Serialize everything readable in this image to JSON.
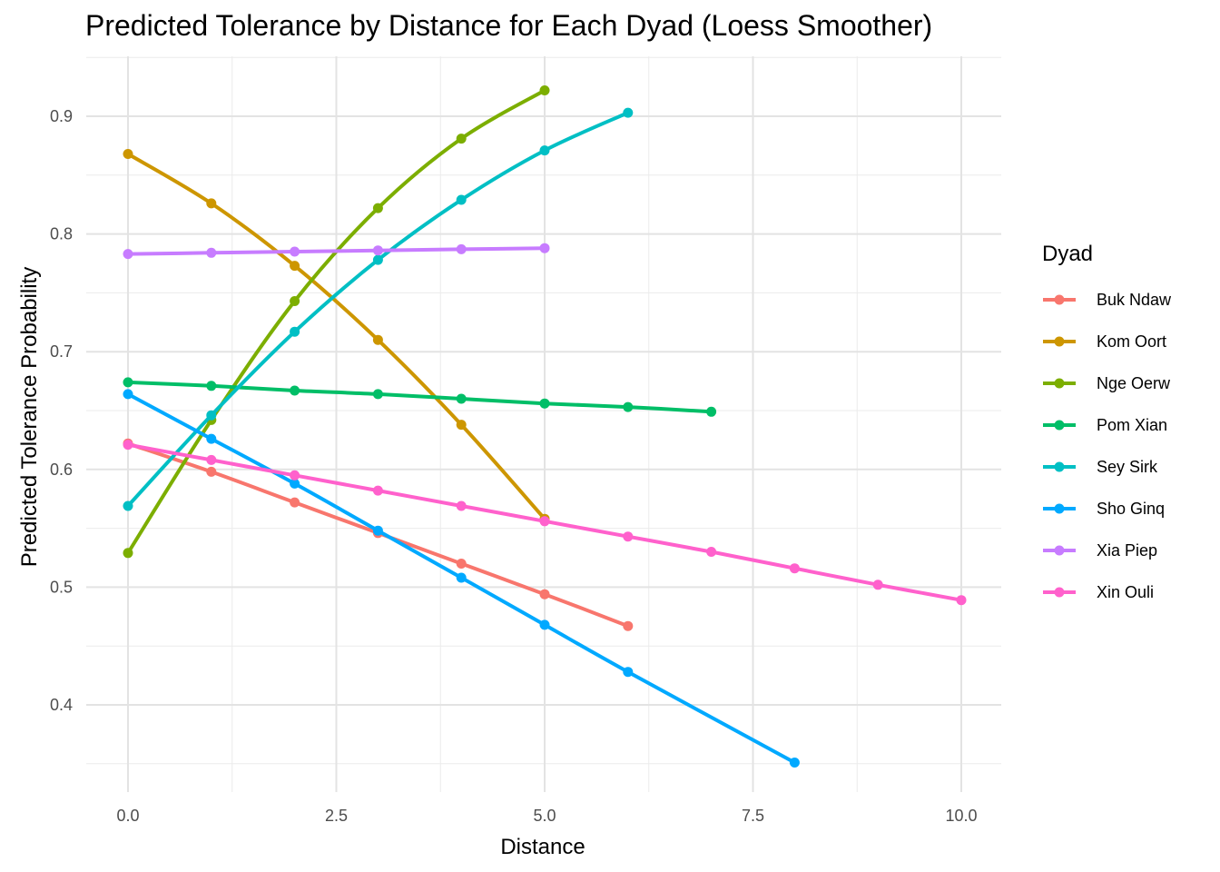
{
  "chart_data": {
    "type": "line",
    "title": "Predicted Tolerance by Distance for Each Dyad (Loess Smoother)",
    "xlabel": "Distance",
    "ylabel": "Predicted Tolerance Probability",
    "xlim": [
      -0.25,
      10.25
    ],
    "ylim": [
      0.328,
      0.943
    ],
    "x_ticks": [
      0.0,
      2.5,
      5.0,
      7.5,
      10.0
    ],
    "x_tick_labels": [
      "0.0",
      "2.5",
      "5.0",
      "7.5",
      "10.0"
    ],
    "y_ticks": [
      0.4,
      0.5,
      0.6,
      0.7,
      0.8,
      0.9
    ],
    "y_tick_labels": [
      "0.4",
      "0.5",
      "0.6",
      "0.7",
      "0.8",
      "0.9"
    ],
    "grid": true,
    "legend": {
      "title": "Dyad",
      "position": "right"
    },
    "series": [
      {
        "name": "Buk Ndaw",
        "color": "#F8766D",
        "x": [
          0,
          1,
          2,
          3,
          4,
          5,
          6
        ],
        "y": [
          0.622,
          0.598,
          0.572,
          0.546,
          0.52,
          0.494,
          0.467
        ]
      },
      {
        "name": "Kom Oort",
        "color": "#CD9600",
        "x": [
          0,
          1,
          2,
          3,
          4,
          5
        ],
        "y": [
          0.868,
          0.826,
          0.773,
          0.71,
          0.638,
          0.558
        ]
      },
      {
        "name": "Nge Oerw",
        "color": "#7CAE00",
        "x": [
          0,
          1,
          2,
          3,
          4,
          5
        ],
        "y": [
          0.529,
          0.642,
          0.743,
          0.822,
          0.881,
          0.922
        ]
      },
      {
        "name": "Pom Xian",
        "color": "#00BE67",
        "x": [
          0,
          1,
          2,
          3,
          4,
          5,
          6,
          7
        ],
        "y": [
          0.674,
          0.671,
          0.667,
          0.664,
          0.66,
          0.656,
          0.653,
          0.649
        ]
      },
      {
        "name": "Sey Sirk",
        "color": "#00BFC4",
        "x": [
          0,
          1,
          2,
          3,
          4,
          5,
          6
        ],
        "y": [
          0.569,
          0.646,
          0.717,
          0.778,
          0.829,
          0.871,
          0.903
        ]
      },
      {
        "name": "Sho Ginq",
        "color": "#00A9FF",
        "x": [
          0,
          1,
          2,
          3,
          4,
          5,
          6,
          8
        ],
        "y": [
          0.664,
          0.626,
          0.588,
          0.548,
          0.508,
          0.468,
          0.428,
          0.351
        ]
      },
      {
        "name": "Xia Piep",
        "color": "#C77CFF",
        "x": [
          0,
          1,
          2,
          3,
          4,
          5
        ],
        "y": [
          0.783,
          0.784,
          0.785,
          0.786,
          0.787,
          0.788
        ]
      },
      {
        "name": "Xin Ouli",
        "color": "#FF61CC",
        "x": [
          0,
          1,
          2,
          3,
          4,
          5,
          6,
          7,
          8,
          9,
          10
        ],
        "y": [
          0.621,
          0.608,
          0.595,
          0.582,
          0.569,
          0.556,
          0.543,
          0.53,
          0.516,
          0.502,
          0.489
        ]
      }
    ]
  }
}
